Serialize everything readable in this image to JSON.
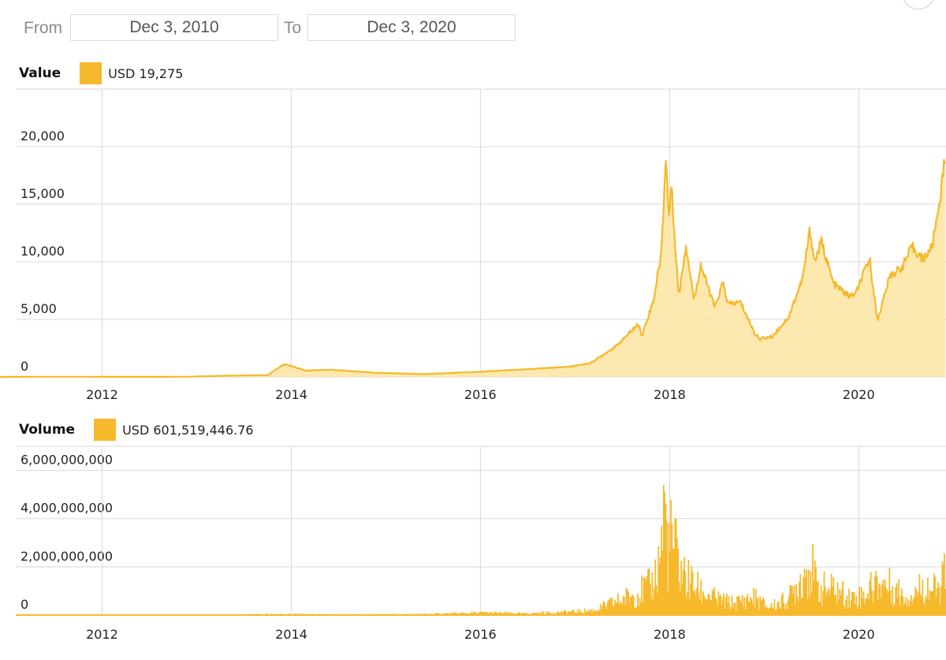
{
  "range": {
    "from_label": "From",
    "from_value": "Dec 3, 2010",
    "to_label": "To",
    "to_value": "Dec 3, 2020"
  },
  "colors": {
    "line": "#f6b92b",
    "fill": "#fde5a6",
    "grid": "#d8d8d8"
  },
  "chart_data": [
    {
      "type": "area",
      "legend_title": "Value",
      "legend_value": "USD 19,275",
      "x_ticks": [
        "2012",
        "2014",
        "2016",
        "2018",
        "2020"
      ],
      "y_ticks": [
        "0",
        "5,000",
        "10,000",
        "15,000",
        "20,000"
      ],
      "ylim": [
        0,
        25000
      ],
      "xlim": [
        "2010-12-03",
        "2020-12-03"
      ],
      "grid": true,
      "points": [
        [
          "2010-12-03",
          0.2
        ],
        [
          "2011-06-01",
          15
        ],
        [
          "2012-06-01",
          6
        ],
        [
          "2012-12-01",
          13
        ],
        [
          "2013-04-01",
          100
        ],
        [
          "2013-10-01",
          150
        ],
        [
          "2013-11-20",
          900
        ],
        [
          "2013-12-04",
          1100
        ],
        [
          "2014-01-15",
          850
        ],
        [
          "2014-02-25",
          550
        ],
        [
          "2014-06-01",
          620
        ],
        [
          "2014-12-01",
          350
        ],
        [
          "2015-06-01",
          250
        ],
        [
          "2015-12-01",
          420
        ],
        [
          "2016-06-15",
          650
        ],
        [
          "2016-12-15",
          900
        ],
        [
          "2017-03-01",
          1200
        ],
        [
          "2017-06-10",
          2700
        ],
        [
          "2017-08-15",
          4200
        ],
        [
          "2017-09-05",
          4600
        ],
        [
          "2017-09-15",
          3500
        ],
        [
          "2017-11-01",
          6800
        ],
        [
          "2017-12-01",
          11000
        ],
        [
          "2017-12-17",
          19300
        ],
        [
          "2017-12-30",
          13500
        ],
        [
          "2018-01-06",
          17000
        ],
        [
          "2018-02-05",
          7000
        ],
        [
          "2018-03-05",
          11500
        ],
        [
          "2018-04-05",
          6700
        ],
        [
          "2018-05-01",
          9700
        ],
        [
          "2018-06-25",
          6000
        ],
        [
          "2018-07-25",
          8200
        ],
        [
          "2018-08-15",
          6300
        ],
        [
          "2018-10-01",
          6500
        ],
        [
          "2018-11-25",
          3800
        ],
        [
          "2018-12-15",
          3300
        ],
        [
          "2019-02-01",
          3500
        ],
        [
          "2019-04-05",
          5200
        ],
        [
          "2019-05-30",
          8600
        ],
        [
          "2019-06-26",
          12800
        ],
        [
          "2019-07-15",
          10000
        ],
        [
          "2019-08-10",
          11800
        ],
        [
          "2019-09-25",
          8100
        ],
        [
          "2019-11-25",
          7000
        ],
        [
          "2019-12-20",
          7200
        ],
        [
          "2020-02-12",
          10300
        ],
        [
          "2020-03-13",
          4900
        ],
        [
          "2020-05-01",
          8800
        ],
        [
          "2020-06-15",
          9500
        ],
        [
          "2020-07-25",
          11300
        ],
        [
          "2020-09-05",
          10200
        ],
        [
          "2020-10-10",
          11300
        ],
        [
          "2020-11-10",
          15500
        ],
        [
          "2020-12-01",
          19275
        ]
      ]
    },
    {
      "type": "bar",
      "legend_title": "Volume",
      "legend_value": "USD 601,519,446.76",
      "x_ticks": [
        "2012",
        "2014",
        "2016",
        "2018",
        "2020"
      ],
      "y_ticks": [
        "0",
        "2,000,000,000",
        "4,000,000,000",
        "6,000,000,000"
      ],
      "ylim": [
        0,
        7000000000
      ],
      "xlim": [
        "2010-12-03",
        "2020-12-03"
      ],
      "grid": true,
      "points": [
        [
          "2010-12-03",
          0
        ],
        [
          "2013-06-01",
          20000000
        ],
        [
          "2013-12-01",
          60000000
        ],
        [
          "2014-06-01",
          30000000
        ],
        [
          "2015-06-01",
          50000000
        ],
        [
          "2016-01-15",
          120000000
        ],
        [
          "2016-06-20",
          80000000
        ],
        [
          "2017-01-05",
          180000000
        ],
        [
          "2017-03-15",
          250000000
        ],
        [
          "2017-06-10",
          700000000
        ],
        [
          "2017-08-20",
          1100000000
        ],
        [
          "2017-10-20",
          1500000000
        ],
        [
          "2017-11-15",
          2500000000
        ],
        [
          "2017-12-05",
          4600000000
        ],
        [
          "2017-12-10",
          6300000000
        ],
        [
          "2017-12-20",
          3300000000
        ],
        [
          "2018-01-05",
          3800000000
        ],
        [
          "2018-01-20",
          3300000000
        ],
        [
          "2018-02-06",
          2400000000
        ],
        [
          "2018-03-10",
          1800000000
        ],
        [
          "2018-05-01",
          1200000000
        ],
        [
          "2018-07-01",
          800000000
        ],
        [
          "2018-09-01",
          600000000
        ],
        [
          "2018-11-20",
          900000000
        ],
        [
          "2019-01-15",
          400000000
        ],
        [
          "2019-04-01",
          800000000
        ],
        [
          "2019-06-26",
          2700000000
        ],
        [
          "2019-07-20",
          1400000000
        ],
        [
          "2019-09-25",
          1300000000
        ],
        [
          "2019-11-25",
          900000000
        ],
        [
          "2020-01-15",
          1000000000
        ],
        [
          "2020-03-12",
          1700000000
        ],
        [
          "2020-05-10",
          1400000000
        ],
        [
          "2020-07-01",
          900000000
        ],
        [
          "2020-09-05",
          1500000000
        ],
        [
          "2020-11-01",
          1200000000
        ],
        [
          "2020-12-01",
          2300000000
        ]
      ]
    }
  ]
}
